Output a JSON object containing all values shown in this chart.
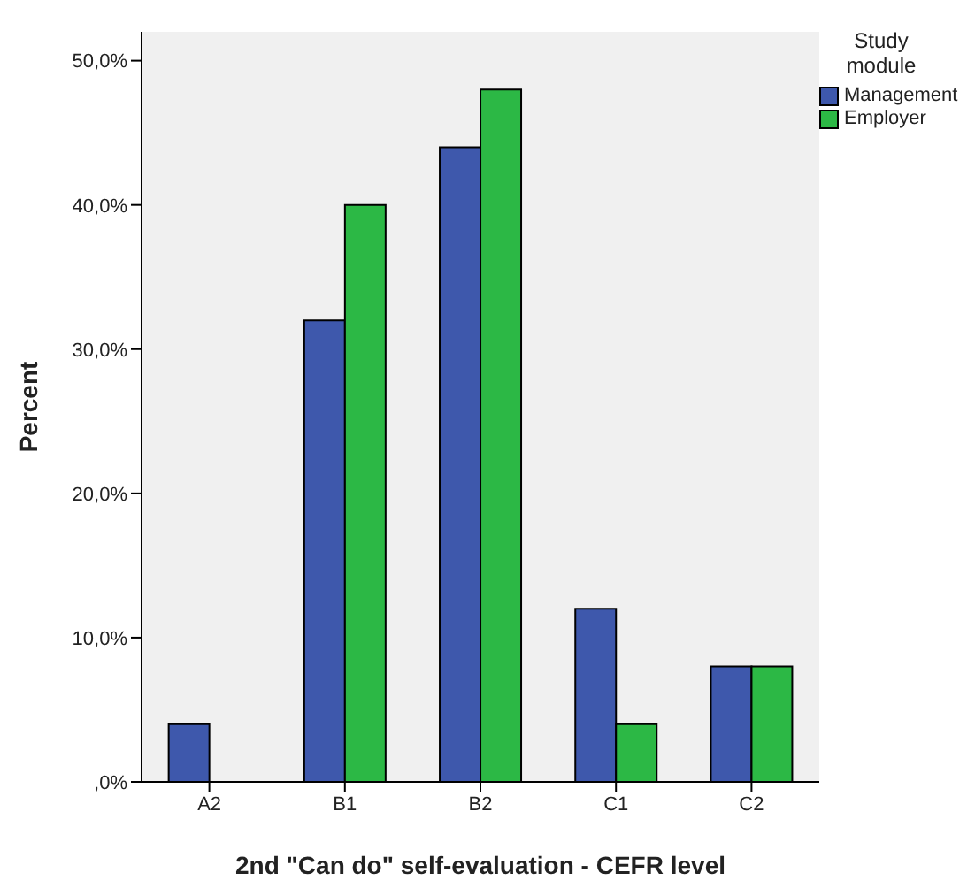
{
  "chart_data": {
    "type": "bar",
    "xlabel": "2nd \"Can do\"  self-evaluation - CEFR level",
    "ylabel": "Percent",
    "legend_title": "Study module",
    "categories": [
      "A2",
      "B1",
      "B2",
      "C1",
      "C2"
    ],
    "series": [
      {
        "name": "Management",
        "color": "#3e58ac",
        "values": [
          4,
          32,
          44,
          12,
          8
        ]
      },
      {
        "name": "Employer",
        "color": "#2cb845",
        "values": [
          0,
          40,
          48,
          4,
          8
        ]
      }
    ],
    "ylim": [
      0,
      52
    ],
    "yticks": [
      {
        "value": 0,
        "label": ",0%"
      },
      {
        "value": 10,
        "label": "10,0%"
      },
      {
        "value": 20,
        "label": "20,0%"
      },
      {
        "value": 30,
        "label": "30,0%"
      },
      {
        "value": 40,
        "label": "40,0%"
      },
      {
        "value": 50,
        "label": "50,0%"
      }
    ],
    "grid": false,
    "legend": "top right"
  }
}
